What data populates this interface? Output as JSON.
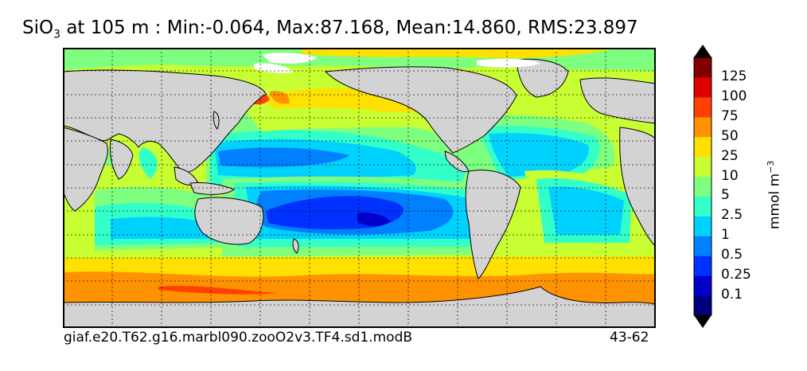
{
  "title": {
    "variable": "SiO",
    "subscript": "3",
    "rest": " at 105 m : Min:-0.064, Max:87.168, Mean:14.860, RMS:23.897"
  },
  "footer": {
    "case_name": "giaf.e20.T62.g16.marbl090.zooO2v3.TF4.sd1.modB",
    "years": "43-62"
  },
  "colorbar": {
    "units_main": "mmol m",
    "units_exp": "−3",
    "levels": [
      "0.1",
      "0.25",
      "0.5",
      "1",
      "2.5",
      "5",
      "10",
      "25",
      "50",
      "75",
      "100",
      "125"
    ],
    "colors": [
      "#00007f",
      "#0000c8",
      "#0032ff",
      "#007fff",
      "#00d2ff",
      "#33ffc8",
      "#7fff7f",
      "#c8ff33",
      "#ffe000",
      "#ff9200",
      "#ff4000",
      "#e00000",
      "#800000"
    ]
  },
  "map": {
    "land_color": "#d3d3d3",
    "ice_color": "#ffffff",
    "grid": true
  }
}
